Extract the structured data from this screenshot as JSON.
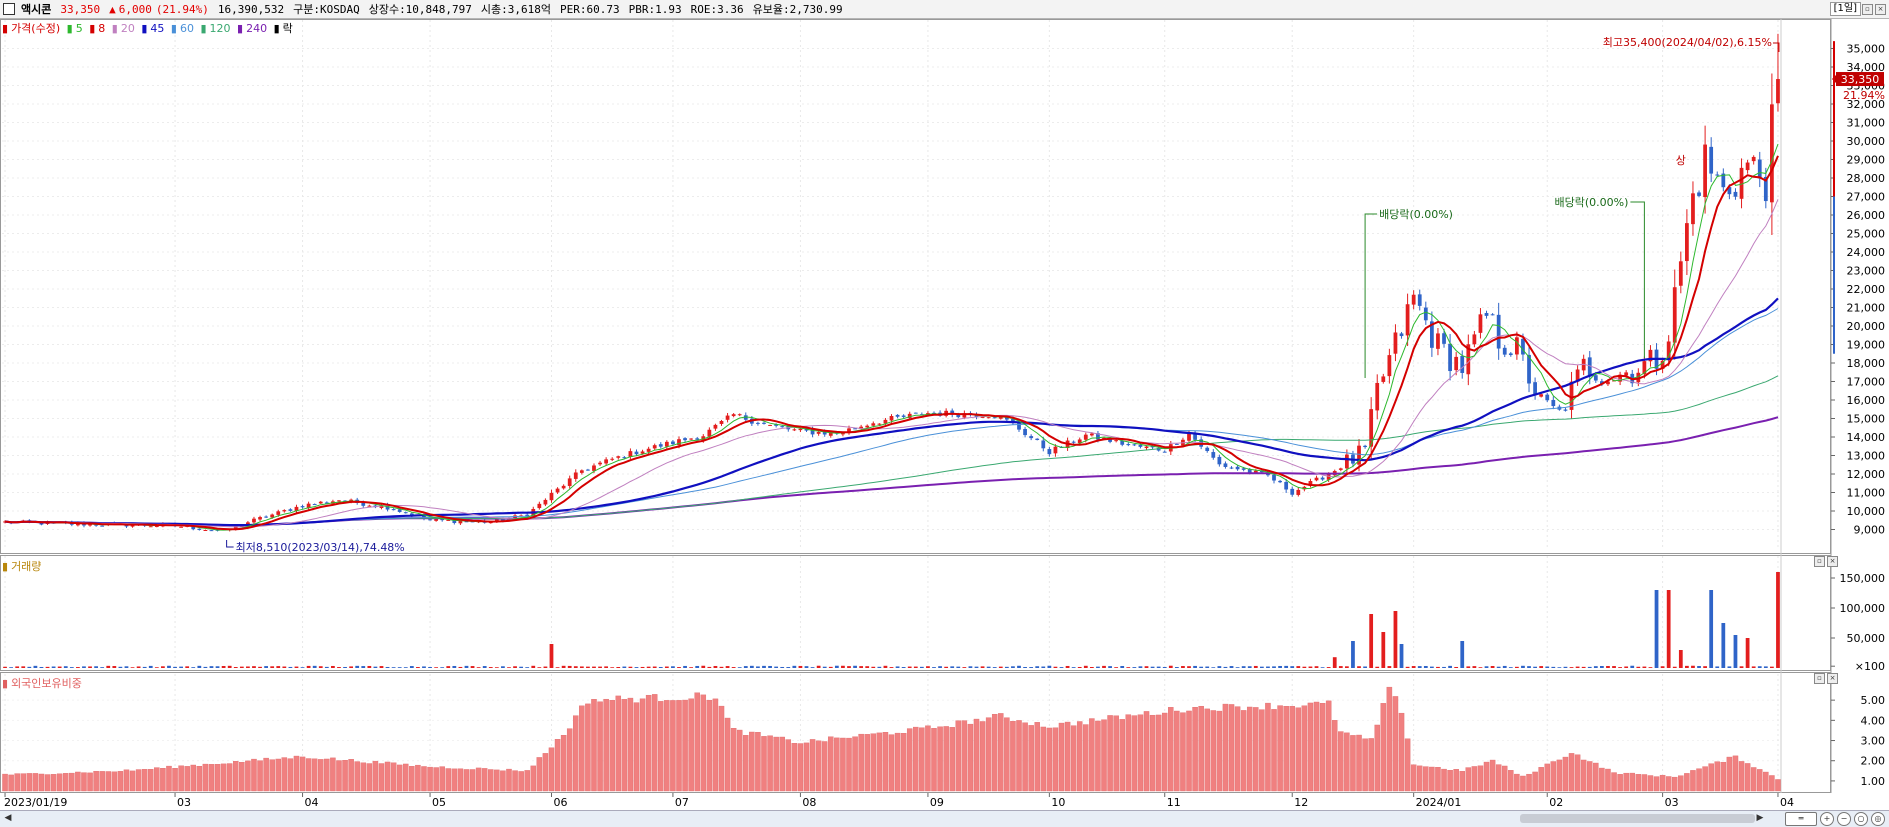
{
  "header": {
    "name": "액시콘",
    "price": "33,350",
    "change_sign": "▲",
    "change": "6,000",
    "change_pct": "(21.94%)",
    "volume": "16,390,532",
    "market": "구분:KOSDAQ",
    "shares": "상장수:10,848,797",
    "mcap": "시총:3,618억",
    "per": "PER:60.73",
    "pbr": "PBR:1.93",
    "roe": "ROE:3.36",
    "float": "유보율:2,730.99",
    "period": "[1일]"
  },
  "price_legend": {
    "main": "가격(수정)",
    "ma": [
      {
        "label": "5",
        "color": "#2db82d"
      },
      {
        "label": "8",
        "color": "#d40000"
      },
      {
        "label": "20",
        "color": "#c080c0"
      },
      {
        "label": "45",
        "color": "#1010c0"
      },
      {
        "label": "60",
        "color": "#4a90d8"
      },
      {
        "label": "120",
        "color": "#3aa870"
      },
      {
        "label": "240",
        "color": "#7a20b0"
      },
      {
        "label": "락",
        "color": "#000000"
      }
    ]
  },
  "annotations": {
    "high": "최고35,400(2024/04/02),6.15%",
    "low": "최저8,510(2023/03/14),74.48%",
    "div1": "배당락(0.00%)",
    "div2": "배당락(0.00%)",
    "up_marker": "상",
    "last_price": "33,350",
    "last_pct": "21.94%"
  },
  "volume_label": "거래량",
  "foreign_label": "외국인보유비중",
  "colors": {
    "up": "#e31e1e",
    "down": "#2f64c8",
    "foreign": "#f08080"
  },
  "chart_data": [
    {
      "type": "candlestick",
      "title": "가격(수정)",
      "ylim": [
        8000,
        36000
      ],
      "y_ticks": [
        "35,000",
        "34,000",
        "33,000",
        "32,000",
        "31,000",
        "30,000",
        "29,000",
        "28,000",
        "27,000",
        "26,000",
        "25,000",
        "24,000",
        "23,000",
        "22,000",
        "21,000",
        "20,000",
        "19,000",
        "18,000",
        "17,000",
        "16,000",
        "15,000",
        "14,000",
        "13,000",
        "12,000",
        "11,000",
        "10,000",
        "9,000"
      ],
      "x_ticks": [
        {
          "label": "2023/01/19",
          "i": 0
        },
        {
          "label": "03",
          "i": 28
        },
        {
          "label": "04",
          "i": 49
        },
        {
          "label": "05",
          "i": 70
        },
        {
          "label": "06",
          "i": 90
        },
        {
          "label": "07",
          "i": 110
        },
        {
          "label": "08",
          "i": 131
        },
        {
          "label": "09",
          "i": 152
        },
        {
          "label": "10",
          "i": 172
        },
        {
          "label": "11",
          "i": 191
        },
        {
          "label": "12",
          "i": 212
        },
        {
          "label": "2024/01",
          "i": 232
        },
        {
          "label": "02",
          "i": 254
        },
        {
          "label": "03",
          "i": 273
        },
        {
          "label": "04",
          "i": 292
        }
      ],
      "close_anchors": [
        [
          0,
          9400
        ],
        [
          10,
          9300
        ],
        [
          20,
          9250
        ],
        [
          28,
          9200
        ],
        [
          36,
          8900
        ],
        [
          40,
          9400
        ],
        [
          49,
          10300
        ],
        [
          55,
          10600
        ],
        [
          63,
          10200
        ],
        [
          70,
          9500
        ],
        [
          80,
          9400
        ],
        [
          86,
          9800
        ],
        [
          90,
          10900
        ],
        [
          95,
          12200
        ],
        [
          100,
          12800
        ],
        [
          105,
          13300
        ],
        [
          110,
          13700
        ],
        [
          115,
          14100
        ],
        [
          120,
          15200
        ],
        [
          126,
          14600
        ],
        [
          131,
          14300
        ],
        [
          137,
          14200
        ],
        [
          143,
          14800
        ],
        [
          152,
          15300
        ],
        [
          163,
          15200
        ],
        [
          166,
          14700
        ],
        [
          172,
          13200
        ],
        [
          178,
          14100
        ],
        [
          186,
          13500
        ],
        [
          191,
          13300
        ],
        [
          195,
          14200
        ],
        [
          200,
          12500
        ],
        [
          208,
          11900
        ],
        [
          212,
          11000
        ],
        [
          218,
          12000
        ],
        [
          224,
          13200
        ],
        [
          226,
          16500
        ],
        [
          230,
          19800
        ],
        [
          232,
          21500
        ],
        [
          236,
          18900
        ],
        [
          240,
          17800
        ],
        [
          244,
          20500
        ],
        [
          246,
          19300
        ],
        [
          249,
          18700
        ],
        [
          253,
          15800
        ],
        [
          256,
          15200
        ],
        [
          260,
          17800
        ],
        [
          265,
          17300
        ],
        [
          268,
          17600
        ],
        [
          272,
          18200
        ],
        [
          274,
          19600
        ],
        [
          276,
          23500
        ],
        [
          278,
          27000
        ],
        [
          280,
          29000
        ],
        [
          283,
          27200
        ],
        [
          287,
          28700
        ],
        [
          290,
          27900
        ],
        [
          292,
          33350
        ]
      ],
      "volume_ylim": [
        0,
        170000
      ],
      "volume_ticks": [
        "150,000",
        "100,000",
        "50,000",
        "×100"
      ],
      "volume_spikes": [
        [
          90,
          40000
        ],
        [
          219,
          18000
        ],
        [
          222,
          45000
        ],
        [
          225,
          90000
        ],
        [
          227,
          60000
        ],
        [
          229,
          95000
        ],
        [
          230,
          40000
        ],
        [
          240,
          45000
        ],
        [
          272,
          130000
        ],
        [
          274,
          130000
        ],
        [
          276,
          30000
        ],
        [
          281,
          130000
        ],
        [
          283,
          75000
        ],
        [
          285,
          55000
        ],
        [
          287,
          50000
        ],
        [
          292,
          160000
        ]
      ],
      "foreign_ylim": [
        0.5,
        5.8
      ],
      "foreign_ticks": [
        "5.00",
        "4.00",
        "3.00",
        "2.00",
        "1.00"
      ],
      "foreign_anchors": [
        [
          0,
          1.3
        ],
        [
          20,
          1.5
        ],
        [
          49,
          2.2
        ],
        [
          70,
          1.7
        ],
        [
          86,
          1.5
        ],
        [
          92,
          3.3
        ],
        [
          96,
          5.0
        ],
        [
          117,
          5.2
        ],
        [
          120,
          3.5
        ],
        [
          131,
          2.9
        ],
        [
          152,
          3.6
        ],
        [
          164,
          4.2
        ],
        [
          172,
          3.7
        ],
        [
          195,
          4.6
        ],
        [
          218,
          4.8
        ],
        [
          220,
          3.4
        ],
        [
          225,
          3.0
        ],
        [
          228,
          5.5
        ],
        [
          230,
          4.5
        ],
        [
          232,
          1.8
        ],
        [
          240,
          1.5
        ],
        [
          245,
          2.0
        ],
        [
          250,
          1.2
        ],
        [
          258,
          2.4
        ],
        [
          265,
          1.4
        ],
        [
          275,
          1.2
        ],
        [
          285,
          2.2
        ],
        [
          292,
          1.1
        ]
      ]
    }
  ]
}
